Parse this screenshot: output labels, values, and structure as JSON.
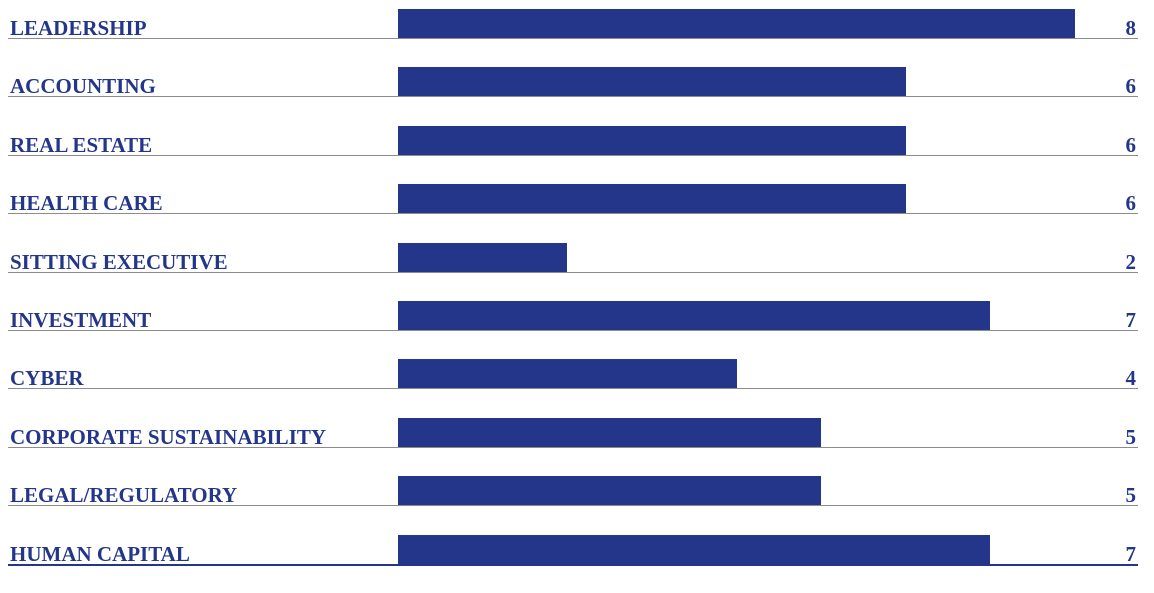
{
  "chart_data": {
    "type": "bar",
    "orientation": "horizontal",
    "categories": [
      "LEADERSHIP",
      "ACCOUNTING",
      "REAL ESTATE",
      "HEALTH CARE",
      "SITTING EXECUTIVE",
      "INVESTMENT",
      "CYBER",
      "CORPORATE SUSTAINABILITY",
      "LEGAL/REGULATORY",
      "HUMAN CAPITAL"
    ],
    "values": [
      8,
      6,
      6,
      6,
      2,
      7,
      4,
      5,
      5,
      7
    ],
    "xlim": [
      0,
      8
    ],
    "grid": false,
    "legend": "none",
    "title": "",
    "xlabel": "",
    "ylabel": ""
  },
  "colors": {
    "bar": "#23368a",
    "text": "#23368a",
    "rule": "#8c8c8c"
  }
}
